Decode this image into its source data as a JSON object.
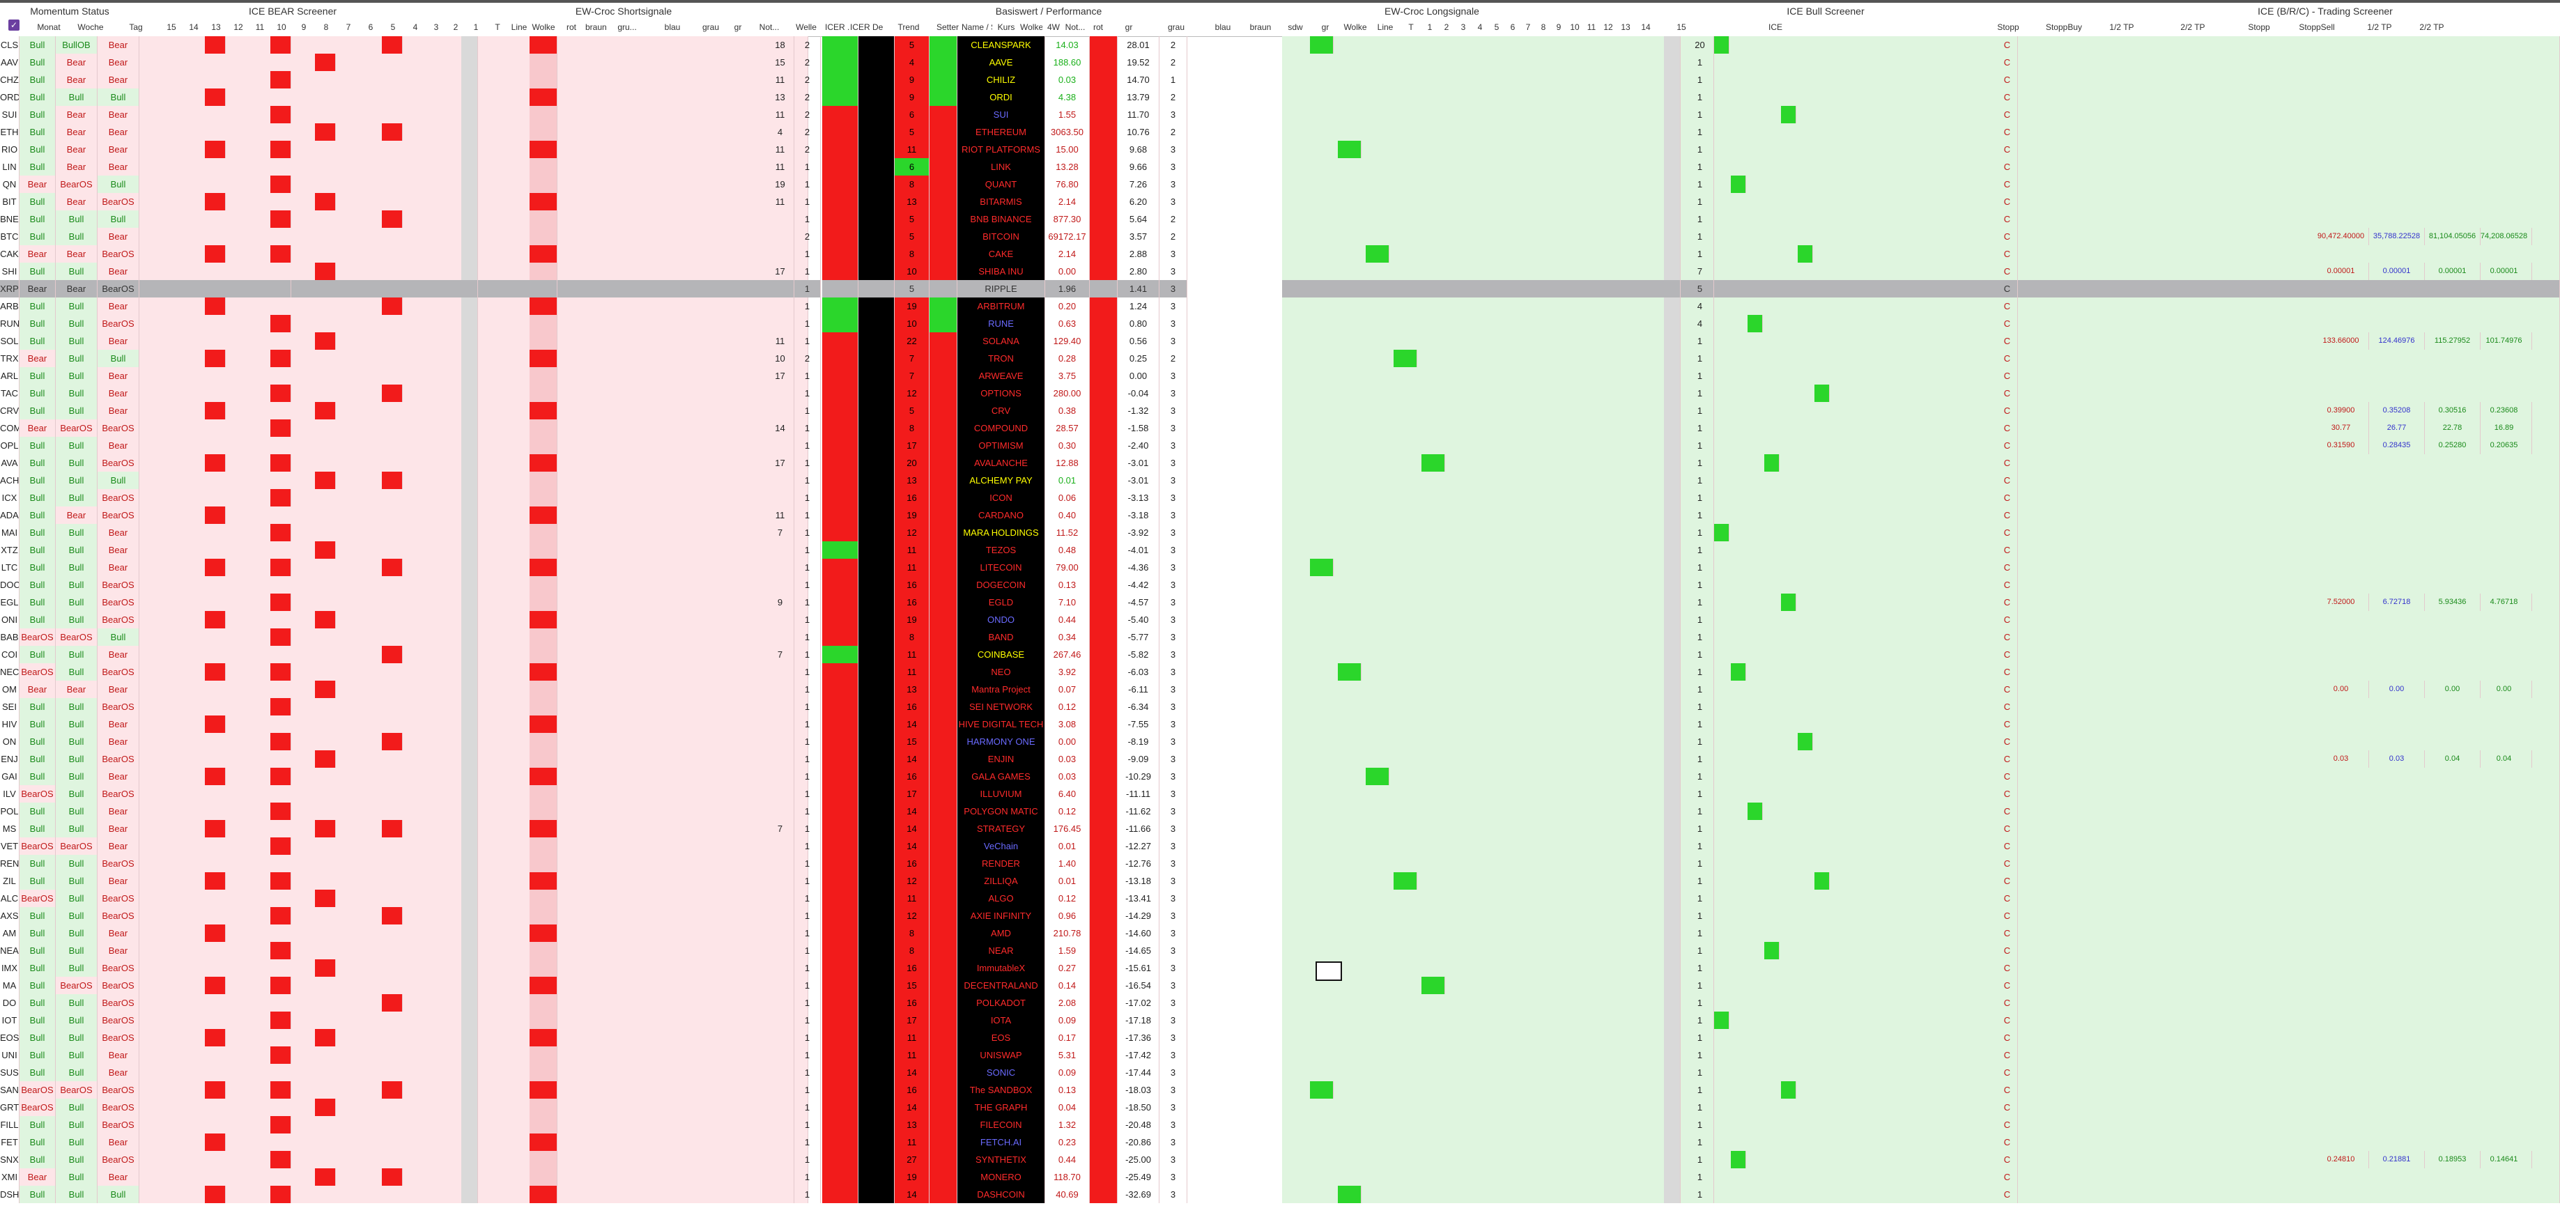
{
  "colors": {
    "bullBg": "#dff5df",
    "bearBg": "#fde5e8",
    "red": "#f21b1b",
    "green": "#2bd62b",
    "black": "#000000",
    "yellow": "#ffff00",
    "blue": "#2222ff",
    "orange": "#ff7a00",
    "pink": "#f8c8cc",
    "lightGreen": "#c2f5c2",
    "selected": "#b5b5b8"
  },
  "groups": [
    "Momentum Status",
    "ICE BEAR Screener",
    "EW-Croc Shortsignale",
    "Basiswert / Performance",
    "EW-Croc Longsignale",
    "ICE Bull Screener",
    "ICE (B/R/C) - Trading Screener"
  ],
  "headers": [
    "Monat",
    "Woche",
    "Tag",
    "15",
    "14",
    "13",
    "12",
    "11",
    "10",
    "9",
    "8",
    "7",
    "6",
    "5",
    "4",
    "3",
    "2",
    "1",
    "T",
    "Line",
    "Wolke",
    "rot",
    "braun",
    "gru...",
    "blau",
    "grau",
    "gr",
    "Not...",
    "Welle",
    "ICER ...",
    "ICER Del...",
    "Trend",
    "Setter",
    "Name / Status",
    "Kurs",
    "Wolke",
    "4W",
    "Not...",
    "rot",
    "gr",
    "grau",
    "blau",
    "braun",
    "sdw",
    "gr",
    "Wolke",
    "Line",
    "T",
    "1",
    "2",
    "3",
    "4",
    "5",
    "6",
    "7",
    "8",
    "9",
    "10",
    "11",
    "12",
    "13",
    "14",
    "15",
    "ICE",
    "Stopp",
    "StoppBuy",
    "1/2 TP",
    "2/2 TP",
    "Stopp",
    "StoppSell",
    "1/2 TP",
    "2/2 TP"
  ],
  "rows": [
    [
      "CLS",
      "Bull",
      "BullOB",
      "Bear",
      "18",
      "2",
      "5",
      "14.03",
      "28.01",
      "2",
      "20",
      "CLEANSPARK"
    ],
    [
      "AAV",
      "Bull",
      "Bear",
      "Bear",
      "15",
      "2",
      "4",
      "188.60",
      "19.52",
      "2",
      "1",
      "AAVE"
    ],
    [
      "CHZ",
      "Bull",
      "Bear",
      "Bear",
      "11",
      "2",
      "9",
      "0.03",
      "14.70",
      "1",
      "1",
      "CHILIZ"
    ],
    [
      "ORD",
      "Bull",
      "Bull",
      "Bull",
      "13",
      "2",
      "9",
      "4.38",
      "13.79",
      "2",
      "1",
      "ORDI"
    ],
    [
      "SUI",
      "Bull",
      "Bear",
      "Bear",
      "11",
      "2",
      "6",
      "1.55",
      "11.70",
      "3",
      "1",
      "SUI"
    ],
    [
      "ETH",
      "Bull",
      "Bear",
      "Bear",
      "4",
      "2",
      "5",
      "3063.50",
      "10.76",
      "2",
      "1",
      "ETHEREUM"
    ],
    [
      "RIO",
      "Bull",
      "Bear",
      "Bear",
      "11",
      "2",
      "11",
      "15.00",
      "9.68",
      "3",
      "1",
      "RIOT PLATFORMS"
    ],
    [
      "LIN",
      "Bull",
      "Bear",
      "Bear",
      "11",
      "1",
      "6",
      "13.28",
      "9.66",
      "3",
      "1",
      "LINK"
    ],
    [
      "QN",
      "Bear",
      "BearOS",
      "Bull",
      "19",
      "1",
      "8",
      "76.80",
      "7.26",
      "3",
      "1",
      "QUANT"
    ],
    [
      "BIT",
      "Bull",
      "Bear",
      "BearOS",
      "11",
      "1",
      "13",
      "2.14",
      "6.20",
      "3",
      "1",
      "BITARMIS"
    ],
    [
      "BNE",
      "Bull",
      "Bull",
      "Bull",
      "",
      "1",
      "5",
      "877.30",
      "5.64",
      "2",
      "1",
      "BNB BINANCE"
    ],
    [
      "BTC",
      "Bull",
      "Bull",
      "Bear",
      "",
      "2",
      "5",
      "69172.17",
      "3.57",
      "2",
      "1",
      "BITCOIN"
    ],
    [
      "CAK",
      "Bear",
      "Bear",
      "BearOS",
      "",
      "1",
      "8",
      "2.14",
      "2.88",
      "3",
      "1",
      "CAKE"
    ],
    [
      "SHI",
      "Bull",
      "Bull",
      "Bear",
      "17",
      "1",
      "10",
      "0.00",
      "2.80",
      "3",
      "7",
      "SHIBA INU"
    ],
    [
      "XRP",
      "Bear",
      "Bear",
      "BearOS",
      "",
      "1",
      "5",
      "1.96",
      "1.41",
      "3",
      "5",
      "RIPPLE"
    ],
    [
      "ARB",
      "Bull",
      "Bull",
      "Bear",
      "",
      "1",
      "19",
      "0.20",
      "1.24",
      "3",
      "4",
      "ARBITRUM"
    ],
    [
      "RUN",
      "Bull",
      "Bull",
      "BearOS",
      "",
      "1",
      "10",
      "0.63",
      "0.80",
      "3",
      "4",
      "RUNE"
    ],
    [
      "SOL",
      "Bull",
      "Bull",
      "Bear",
      "11",
      "1",
      "22",
      "129.40",
      "0.56",
      "3",
      "1",
      "SOLANA"
    ],
    [
      "TRX",
      "Bear",
      "Bull",
      "Bull",
      "10",
      "2",
      "7",
      "0.28",
      "0.25",
      "2",
      "1",
      "TRON"
    ],
    [
      "ARL",
      "Bull",
      "Bull",
      "Bear",
      "17",
      "1",
      "7",
      "3.75",
      "0.00",
      "3",
      "1",
      "ARWEAVE"
    ],
    [
      "TAC",
      "Bull",
      "Bull",
      "Bear",
      "",
      "1",
      "12",
      "280.00",
      "-0.04",
      "3",
      "1",
      "OPTIONS"
    ],
    [
      "CRV",
      "Bull",
      "Bull",
      "Bear",
      "",
      "1",
      "5",
      "0.38",
      "-1.32",
      "3",
      "1",
      "CRV"
    ],
    [
      "COM",
      "Bear",
      "BearOS",
      "BearOS",
      "14",
      "1",
      "8",
      "28.57",
      "-1.58",
      "3",
      "1",
      "COMPOUND"
    ],
    [
      "OPL",
      "Bull",
      "Bull",
      "Bear",
      "",
      "1",
      "17",
      "0.30",
      "-2.40",
      "3",
      "1",
      "OPTIMISM"
    ],
    [
      "AVA",
      "Bull",
      "Bull",
      "BearOS",
      "17",
      "1",
      "20",
      "12.88",
      "-3.01",
      "3",
      "1",
      "AVALANCHE"
    ],
    [
      "ACH",
      "Bull",
      "Bull",
      "Bull",
      "",
      "1",
      "13",
      "0.01",
      "-3.01",
      "3",
      "1",
      "ALCHEMY PAY"
    ],
    [
      "ICX",
      "Bull",
      "Bull",
      "BearOS",
      "",
      "1",
      "16",
      "0.06",
      "-3.13",
      "3",
      "1",
      "ICON"
    ],
    [
      "ADA",
      "Bull",
      "Bear",
      "BearOS",
      "11",
      "1",
      "19",
      "0.40",
      "-3.18",
      "3",
      "1",
      "CARDANO"
    ],
    [
      "MAI",
      "Bull",
      "Bull",
      "Bear",
      "7",
      "1",
      "12",
      "11.52",
      "-3.92",
      "3",
      "1",
      "MARA HOLDINGS"
    ],
    [
      "XTZ",
      "Bull",
      "Bull",
      "Bear",
      "",
      "1",
      "11",
      "0.48",
      "-4.01",
      "3",
      "1",
      "TEZOS"
    ],
    [
      "LTC",
      "Bull",
      "Bull",
      "Bear",
      "",
      "1",
      "11",
      "79.00",
      "-4.36",
      "3",
      "1",
      "LITECOIN"
    ],
    [
      "DOC",
      "Bull",
      "Bull",
      "BearOS",
      "",
      "1",
      "16",
      "0.13",
      "-4.42",
      "3",
      "1",
      "DOGECOIN"
    ],
    [
      "EGL",
      "Bull",
      "Bull",
      "BearOS",
      "9",
      "1",
      "16",
      "7.10",
      "-4.57",
      "3",
      "1",
      "EGLD"
    ],
    [
      "ONI",
      "Bull",
      "Bull",
      "BearOS",
      "",
      "1",
      "19",
      "0.44",
      "-5.40",
      "3",
      "1",
      "ONDO"
    ],
    [
      "BAB",
      "BearOS",
      "BearOS",
      "Bull",
      "",
      "1",
      "8",
      "0.34",
      "-5.77",
      "3",
      "1",
      "BAND"
    ],
    [
      "COI",
      "Bull",
      "Bull",
      "Bear",
      "7",
      "1",
      "11",
      "267.46",
      "-5.82",
      "3",
      "1",
      "COINBASE"
    ],
    [
      "NEC",
      "BearOS",
      "Bull",
      "BearOS",
      "",
      "1",
      "11",
      "3.92",
      "-6.03",
      "3",
      "1",
      "NEO"
    ],
    [
      "OM",
      "Bear",
      "Bear",
      "Bear",
      "",
      "1",
      "13",
      "0.07",
      "-6.11",
      "3",
      "1",
      "Mantra Project"
    ],
    [
      "SEI",
      "Bull",
      "Bull",
      "BearOS",
      "",
      "1",
      "16",
      "0.12",
      "-6.34",
      "3",
      "1",
      "SEI NETWORK"
    ],
    [
      "HIV",
      "Bull",
      "Bull",
      "Bear",
      "",
      "1",
      "14",
      "3.08",
      "-7.55",
      "3",
      "1",
      "HIVE DIGITAL TECH"
    ],
    [
      "ON",
      "Bull",
      "Bull",
      "Bear",
      "",
      "1",
      "15",
      "0.00",
      "-8.19",
      "3",
      "1",
      "HARMONY ONE"
    ],
    [
      "ENJ",
      "Bull",
      "Bull",
      "BearOS",
      "",
      "1",
      "14",
      "0.03",
      "-9.09",
      "3",
      "1",
      "ENJIN"
    ],
    [
      "GAI",
      "Bull",
      "Bull",
      "Bear",
      "",
      "1",
      "16",
      "0.03",
      "-10.29",
      "3",
      "1",
      "GALA GAMES"
    ],
    [
      "ILV",
      "BearOS",
      "Bull",
      "BearOS",
      "",
      "1",
      "17",
      "6.40",
      "-11.11",
      "3",
      "1",
      "ILLUVIUM"
    ],
    [
      "POL",
      "Bull",
      "Bull",
      "Bear",
      "",
      "1",
      "14",
      "0.12",
      "-11.62",
      "3",
      "1",
      "POLYGON MATIC"
    ],
    [
      "MS",
      "Bull",
      "Bull",
      "Bear",
      "7",
      "1",
      "14",
      "176.45",
      "-11.66",
      "3",
      "1",
      "STRATEGY"
    ],
    [
      "VET",
      "BearOS",
      "BearOS",
      "Bear",
      "",
      "1",
      "14",
      "0.01",
      "-12.27",
      "3",
      "1",
      "VeChain"
    ],
    [
      "REN",
      "Bull",
      "Bull",
      "BearOS",
      "",
      "1",
      "16",
      "1.40",
      "-12.76",
      "3",
      "1",
      "RENDER"
    ],
    [
      "ZIL",
      "Bull",
      "Bull",
      "Bear",
      "",
      "1",
      "12",
      "0.01",
      "-13.18",
      "3",
      "1",
      "ZILLIQA"
    ],
    [
      "ALC",
      "BearOS",
      "Bull",
      "BearOS",
      "",
      "1",
      "11",
      "0.12",
      "-13.41",
      "3",
      "1",
      "ALGO"
    ],
    [
      "AXS",
      "Bull",
      "Bull",
      "BearOS",
      "",
      "1",
      "12",
      "0.96",
      "-14.29",
      "3",
      "1",
      "AXIE INFINITY"
    ],
    [
      "AM",
      "Bull",
      "Bull",
      "Bear",
      "",
      "1",
      "8",
      "210.78",
      "-14.60",
      "3",
      "1",
      "AMD"
    ],
    [
      "NEA",
      "Bull",
      "Bull",
      "Bear",
      "",
      "1",
      "8",
      "1.59",
      "-14.65",
      "3",
      "1",
      "NEAR"
    ],
    [
      "IMX",
      "Bull",
      "Bull",
      "BearOS",
      "",
      "1",
      "16",
      "0.27",
      "-15.61",
      "3",
      "1",
      "ImmutableX"
    ],
    [
      "MA",
      "Bull",
      "BearOS",
      "BearOS",
      "",
      "1",
      "15",
      "0.14",
      "-16.54",
      "3",
      "1",
      "DECENTRALAND"
    ],
    [
      "DO",
      "Bull",
      "Bull",
      "BearOS",
      "",
      "1",
      "16",
      "2.08",
      "-17.02",
      "3",
      "1",
      "POLKADOT"
    ],
    [
      "IOT",
      "Bull",
      "Bull",
      "BearOS",
      "",
      "1",
      "17",
      "0.09",
      "-17.18",
      "3",
      "1",
      "IOTA"
    ],
    [
      "EOS",
      "Bull",
      "Bull",
      "BearOS",
      "",
      "1",
      "11",
      "0.17",
      "-17.36",
      "3",
      "1",
      "EOS"
    ],
    [
      "UNI",
      "Bull",
      "Bull",
      "Bear",
      "",
      "1",
      "11",
      "5.31",
      "-17.42",
      "3",
      "1",
      "UNISWAP"
    ],
    [
      "SUS",
      "Bull",
      "Bull",
      "Bear",
      "",
      "1",
      "14",
      "0.09",
      "-17.44",
      "3",
      "1",
      "SONIC"
    ],
    [
      "SAN",
      "BearOS",
      "BearOS",
      "BearOS",
      "",
      "1",
      "16",
      "0.13",
      "-18.03",
      "3",
      "1",
      "The SANDBOX"
    ],
    [
      "GRT",
      "BearOS",
      "Bull",
      "BearOS",
      "",
      "1",
      "14",
      "0.04",
      "-18.50",
      "3",
      "1",
      "THE GRAPH"
    ],
    [
      "FILL",
      "Bull",
      "Bull",
      "BearOS",
      "",
      "1",
      "13",
      "1.32",
      "-20.48",
      "3",
      "1",
      "FILECOIN"
    ],
    [
      "FET",
      "Bull",
      "Bull",
      "Bear",
      "",
      "1",
      "11",
      "0.23",
      "-20.86",
      "3",
      "1",
      "FETCH.AI"
    ],
    [
      "SNX",
      "Bull",
      "Bull",
      "BearOS",
      "",
      "1",
      "27",
      "0.44",
      "-25.00",
      "3",
      "1",
      "SYNTHETIX"
    ],
    [
      "XMI",
      "Bear",
      "Bull",
      "Bear",
      "",
      "1",
      "19",
      "118.70",
      "-25.49",
      "3",
      "1",
      "MONERO"
    ],
    [
      "DSH",
      "Bull",
      "Bull",
      "Bull",
      "",
      "1",
      "14",
      "40.69",
      "-32.69",
      "3",
      "1",
      "DASHCOIN"
    ]
  ],
  "trading": [
    {
      "row": 11,
      "vals": [
        "90,472.40000",
        "35,788.22528",
        "81,104.05056",
        "74,208.06528"
      ]
    },
    {
      "row": 13,
      "vals": [
        "0.00001",
        "0.00001",
        "0.00001",
        "0.00001"
      ]
    },
    {
      "row": 17,
      "vals": [
        "133.66000",
        "124.46976",
        "115.27952",
        "101.74976"
      ]
    },
    {
      "row": 21,
      "vals": [
        "0.39900",
        "0.35208",
        "0.30516",
        "0.23608"
      ]
    },
    {
      "row": 22,
      "vals": [
        "30.77",
        "26.77",
        "22.78",
        "16.89"
      ]
    },
    {
      "row": 23,
      "vals": [
        "0.31590",
        "0.28435",
        "0.25280",
        "0.20635"
      ]
    },
    {
      "row": 32,
      "vals": [
        "7.52000",
        "6.72718",
        "5.93436",
        "4.76718"
      ]
    },
    {
      "row": 37,
      "vals": [
        "0.00",
        "0.00",
        "0.00",
        "0.00"
      ]
    },
    {
      "row": 41,
      "vals": [
        "0.03",
        "0.03",
        "0.04",
        "0.04"
      ]
    },
    {
      "row": 64,
      "vals": [
        "0.24810",
        "0.21881",
        "0.18953",
        "0.14641"
      ]
    }
  ],
  "checkbox": "✓"
}
